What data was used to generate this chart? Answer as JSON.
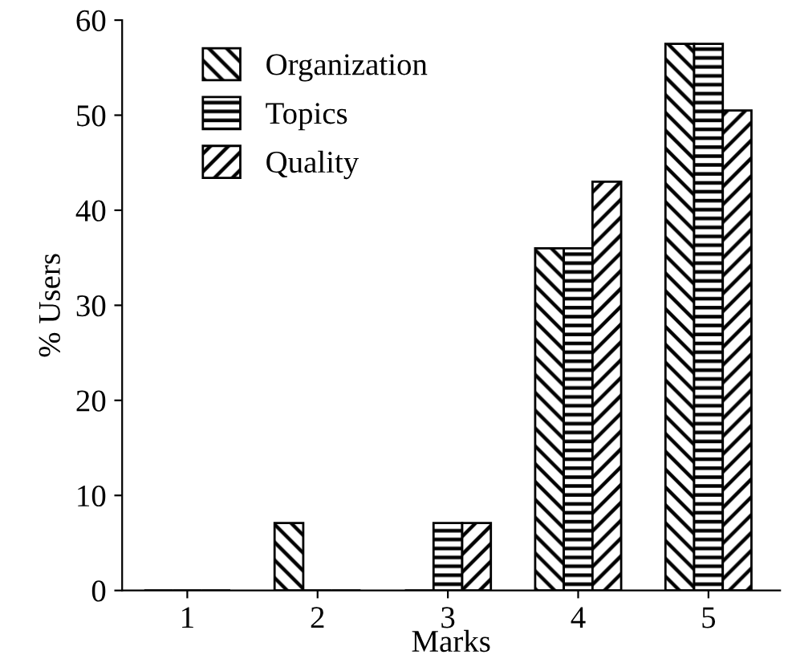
{
  "chart_data": {
    "type": "bar",
    "xlabel": "Marks",
    "ylabel": "% Users",
    "categories": [
      "1",
      "2",
      "3",
      "4",
      "5"
    ],
    "series": [
      {
        "name": "Organization",
        "color": "#000000",
        "values": [
          0,
          7.1,
          0,
          36,
          57.5
        ]
      },
      {
        "name": "Topics",
        "color": "#000000",
        "values": [
          0,
          0,
          7.1,
          36,
          57.5
        ]
      },
      {
        "name": "Quality",
        "color": "#000000",
        "values": [
          0,
          0,
          7.1,
          43,
          50.5
        ]
      }
    ],
    "ylim": [
      0,
      60
    ],
    "yticks": [
      0,
      10,
      20,
      30,
      40,
      50,
      60
    ],
    "grid": false,
    "legend": "top left"
  }
}
